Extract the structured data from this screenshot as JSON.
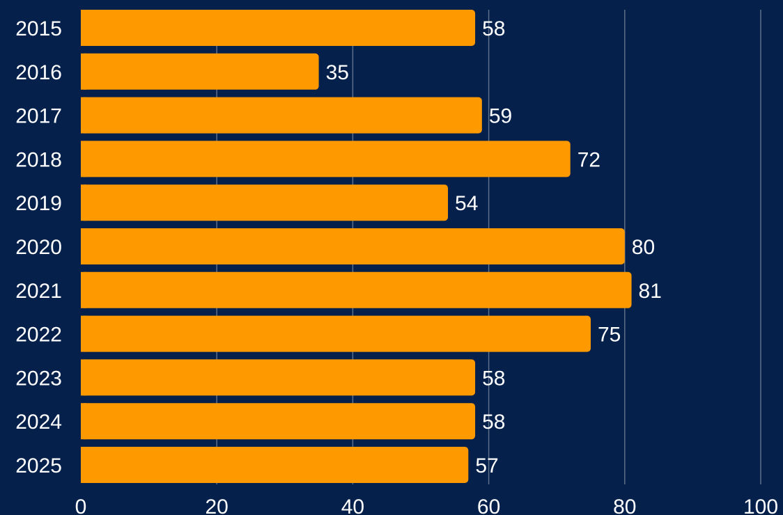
{
  "chart_data": {
    "type": "bar",
    "orientation": "horizontal",
    "categories": [
      "2015",
      "2016",
      "2017",
      "2018",
      "2019",
      "2020",
      "2021",
      "2022",
      "2023",
      "2024",
      "2025"
    ],
    "values": [
      58,
      35,
      59,
      72,
      54,
      80,
      81,
      75,
      58,
      58,
      57
    ],
    "data_labels": [
      "58",
      "35",
      "59",
      "72",
      "54",
      "80",
      "81",
      "75",
      "58",
      "58",
      "57"
    ],
    "xlim": [
      0,
      100
    ],
    "x_ticks": [
      0,
      20,
      40,
      60,
      80,
      100
    ],
    "x_tick_labels": [
      "0",
      "20",
      "40",
      "60",
      "80",
      "100"
    ],
    "title": "",
    "xlabel": "",
    "ylabel": "",
    "grid": "vertical",
    "legend": "none",
    "colors": {
      "background": "#04204b",
      "bar": "#ff9900",
      "grid": "#5f6f89",
      "text": "#ffffff"
    }
  }
}
